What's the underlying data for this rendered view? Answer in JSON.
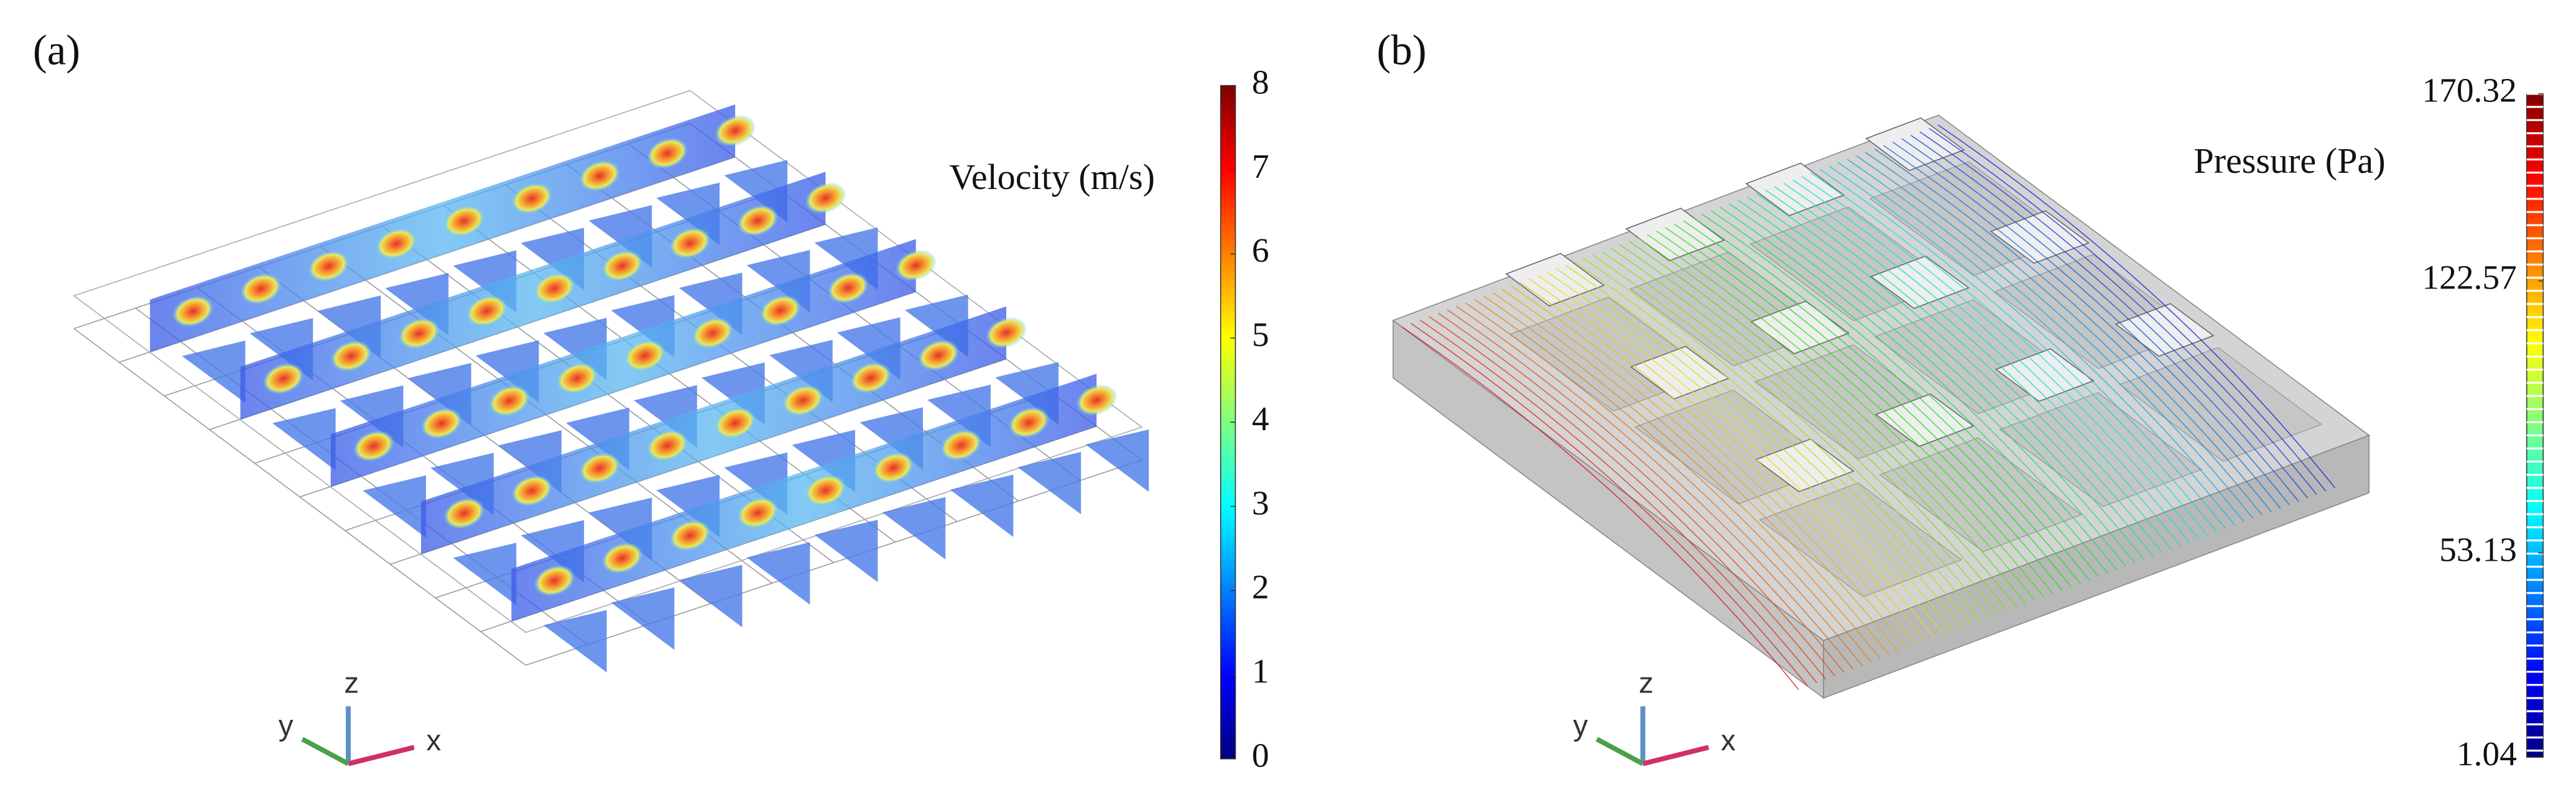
{
  "panels": [
    {
      "label": "(a)",
      "title": "Velocity (m/s)",
      "colorbar": {
        "lim": [
          0,
          8
        ],
        "ticks": [
          0,
          1,
          2,
          3,
          4,
          5,
          6,
          7,
          8
        ]
      },
      "axes_labels": {
        "x": "x",
        "y": "y",
        "z": "z"
      }
    },
    {
      "label": "(b)",
      "title": "Pressure (Pa)",
      "colorbar": {
        "lim": [
          1.04,
          170.32
        ],
        "ticks": [
          170.32,
          122.57,
          53.13,
          1.04
        ]
      },
      "axes_labels": {
        "x": "x",
        "y": "y",
        "z": "z"
      }
    }
  ]
}
